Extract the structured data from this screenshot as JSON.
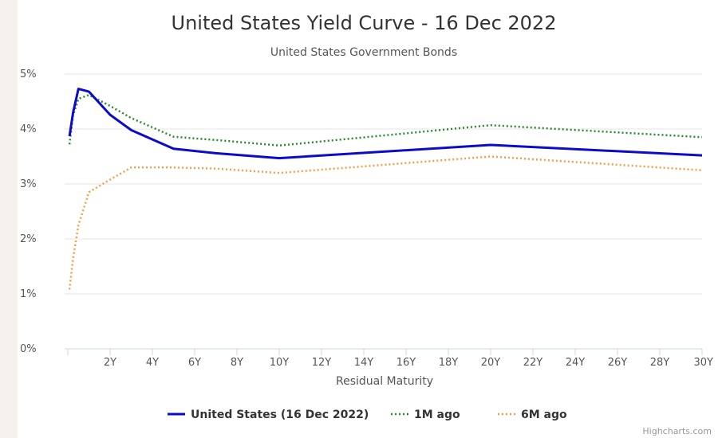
{
  "chart_data": {
    "type": "line",
    "title": "United States Yield Curve - 16 Dec 2022",
    "subtitle": "United States Government Bonds",
    "xlabel": "Residual Maturity",
    "ylabel": "",
    "xlim": [
      0,
      30
    ],
    "ylim": [
      0,
      5
    ],
    "x_ticks": [
      {
        "v": 2,
        "label": "2Y"
      },
      {
        "v": 4,
        "label": "4Y"
      },
      {
        "v": 6,
        "label": "6Y"
      },
      {
        "v": 8,
        "label": "8Y"
      },
      {
        "v": 10,
        "label": "10Y"
      },
      {
        "v": 12,
        "label": "12Y"
      },
      {
        "v": 14,
        "label": "14Y"
      },
      {
        "v": 16,
        "label": "16Y"
      },
      {
        "v": 18,
        "label": "18Y"
      },
      {
        "v": 20,
        "label": "20Y"
      },
      {
        "v": 22,
        "label": "22Y"
      },
      {
        "v": 24,
        "label": "24Y"
      },
      {
        "v": 26,
        "label": "26Y"
      },
      {
        "v": 28,
        "label": "28Y"
      },
      {
        "v": 30,
        "label": "30Y"
      }
    ],
    "y_ticks": [
      {
        "v": 0,
        "label": "0%"
      },
      {
        "v": 1,
        "label": "1%"
      },
      {
        "v": 2,
        "label": "2%"
      },
      {
        "v": 3,
        "label": "3%"
      },
      {
        "v": 4,
        "label": "4%"
      },
      {
        "v": 5,
        "label": "5%"
      }
    ],
    "grid": true,
    "legend_position": "bottom-center",
    "series": [
      {
        "name": "United States (16 Dec 2022)",
        "color": "#0b0bcc",
        "style": "solid",
        "points": [
          [
            0.08,
            3.87
          ],
          [
            0.25,
            4.3
          ],
          [
            0.5,
            4.73
          ],
          [
            1,
            4.68
          ],
          [
            2,
            4.26
          ],
          [
            3,
            3.98
          ],
          [
            5,
            3.64
          ],
          [
            7,
            3.56
          ],
          [
            10,
            3.47
          ],
          [
            20,
            3.71
          ],
          [
            30,
            3.52
          ]
        ]
      },
      {
        "name": "1M ago",
        "color": "#2a8a2a",
        "style": "dotted",
        "points": [
          [
            0.08,
            3.72
          ],
          [
            0.25,
            4.25
          ],
          [
            0.5,
            4.55
          ],
          [
            1,
            4.62
          ],
          [
            2,
            4.42
          ],
          [
            3,
            4.2
          ],
          [
            5,
            3.86
          ],
          [
            7,
            3.8
          ],
          [
            10,
            3.7
          ],
          [
            20,
            4.07
          ],
          [
            30,
            3.85
          ]
        ]
      },
      {
        "name": "6M ago",
        "color": "#f0a04b",
        "style": "dotted",
        "points": [
          [
            0.08,
            1.08
          ],
          [
            0.25,
            1.65
          ],
          [
            0.5,
            2.25
          ],
          [
            1,
            2.85
          ],
          [
            2,
            3.08
          ],
          [
            3,
            3.3
          ],
          [
            5,
            3.3
          ],
          [
            7,
            3.28
          ],
          [
            10,
            3.2
          ],
          [
            20,
            3.5
          ],
          [
            30,
            3.25
          ]
        ]
      }
    ]
  },
  "credits": "Highcharts.com"
}
